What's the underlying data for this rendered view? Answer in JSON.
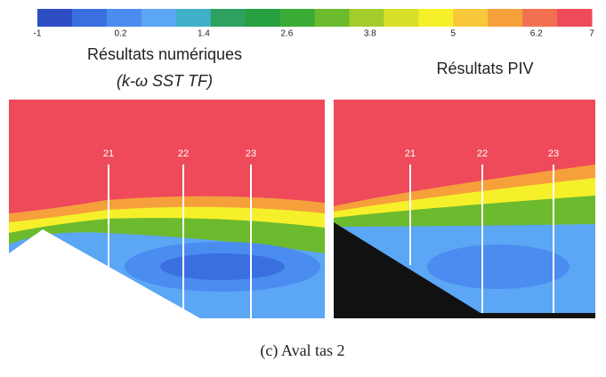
{
  "colorbar": {
    "range": [
      -1,
      7
    ],
    "ticks": [
      -1,
      0.2,
      1.4,
      2.6,
      3.8,
      5,
      6.2,
      7
    ],
    "colors": [
      "#2f4ec4",
      "#3a6fe0",
      "#4a8cf0",
      "#5ba6f5",
      "#3fb0c8",
      "#2ea060",
      "#27a040",
      "#3aab35",
      "#6cba2e",
      "#a4cc2a",
      "#d8e02a",
      "#f6f02a",
      "#f8c83a",
      "#f6a03c",
      "#f27050",
      "#ee4a5a"
    ]
  },
  "left_panel": {
    "title": "Résultats numériques",
    "subtitle": "(k-ω SST TF)",
    "sections": [
      "21",
      "22",
      "23"
    ]
  },
  "right_panel": {
    "title": "Résultats PIV",
    "sections": [
      "21",
      "22",
      "23"
    ]
  },
  "caption": "(c) Aval tas 2"
}
